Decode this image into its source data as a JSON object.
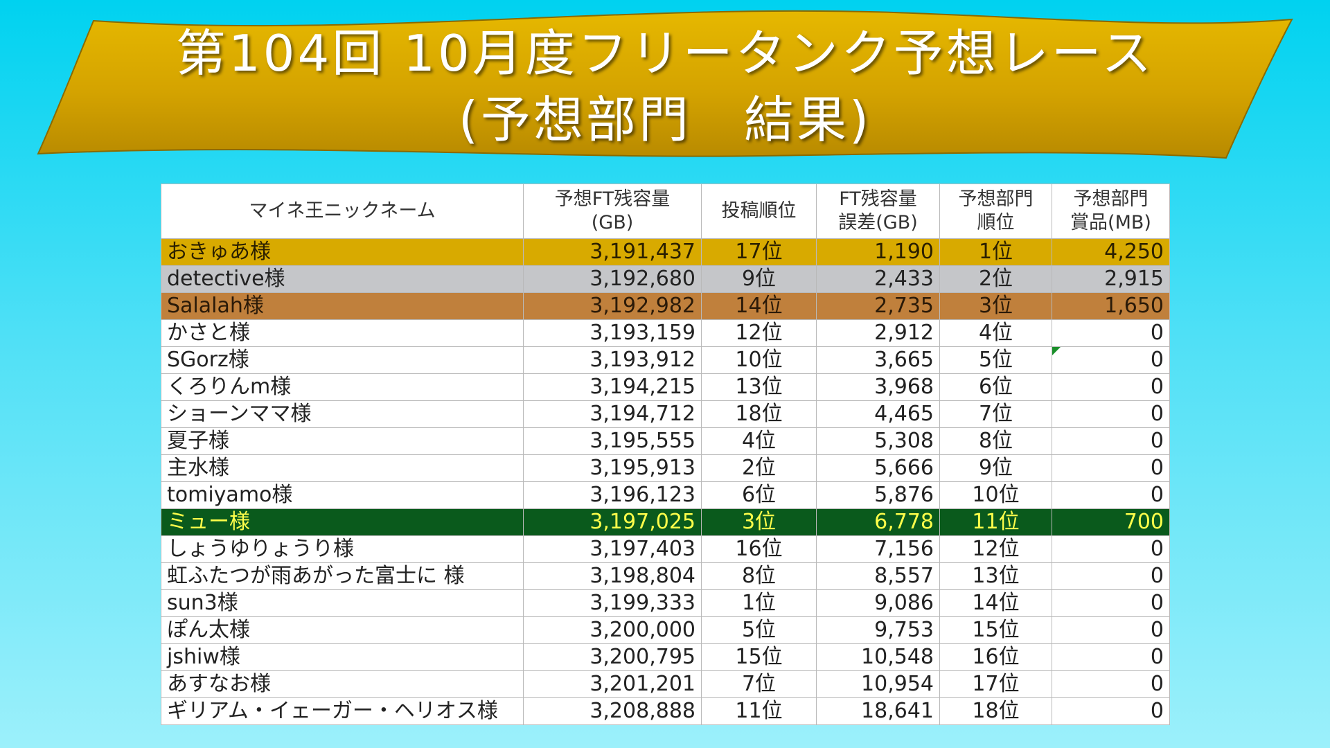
{
  "title": {
    "line1": "第104回 10月度フリータンク予想レース",
    "line2": "(予想部門　結果)"
  },
  "colors": {
    "banner_gold": "#d8a800",
    "gold": "#d8aa00",
    "silver": "#c5c6c9",
    "bronze": "#c0803c",
    "green": "#0a5a1c",
    "green_text": "#ffff4a"
  },
  "table": {
    "headers": {
      "name": "マイネ王ニックネーム",
      "forecast_l1": "予想FT残容量",
      "forecast_l2": "(GB)",
      "post_rank": "投稿順位",
      "error_l1": "FT残容量",
      "error_l2": "誤差(GB)",
      "rank_l1": "予想部門",
      "rank_l2": "順位",
      "prize_l1": "予想部門",
      "prize_l2": "賞品(MB)"
    },
    "rows": [
      {
        "name": "おきゅあ様",
        "forecast": "3,191,437",
        "post": "17位",
        "error": "1,190",
        "rank": "1位",
        "prize": "4,250",
        "style": "gold"
      },
      {
        "name": "detective様",
        "forecast": "3,192,680",
        "post": "9位",
        "error": "2,433",
        "rank": "2位",
        "prize": "2,915",
        "style": "silver"
      },
      {
        "name": "Salalah様",
        "forecast": "3,192,982",
        "post": "14位",
        "error": "2,735",
        "rank": "3位",
        "prize": "1,650",
        "style": "bronze"
      },
      {
        "name": "かさと様",
        "forecast": "3,193,159",
        "post": "12位",
        "error": "2,912",
        "rank": "4位",
        "prize": "0",
        "style": ""
      },
      {
        "name": "SGorz様",
        "forecast": "3,193,912",
        "post": "10位",
        "error": "3,665",
        "rank": "5位",
        "prize": "0",
        "style": ""
      },
      {
        "name": "くろりんm様",
        "forecast": "3,194,215",
        "post": "13位",
        "error": "3,968",
        "rank": "6位",
        "prize": "0",
        "style": ""
      },
      {
        "name": "ショーンママ様",
        "forecast": "3,194,712",
        "post": "18位",
        "error": "4,465",
        "rank": "7位",
        "prize": "0",
        "style": ""
      },
      {
        "name": "夏子様",
        "forecast": "3,195,555",
        "post": "4位",
        "error": "5,308",
        "rank": "8位",
        "prize": "0",
        "style": ""
      },
      {
        "name": "主水様",
        "forecast": "3,195,913",
        "post": "2位",
        "error": "5,666",
        "rank": "9位",
        "prize": "0",
        "style": ""
      },
      {
        "name": "tomiyamo様",
        "forecast": "3,196,123",
        "post": "6位",
        "error": "5,876",
        "rank": "10位",
        "prize": "0",
        "style": ""
      },
      {
        "name": "ミュー様",
        "forecast": "3,197,025",
        "post": "3位",
        "error": "6,778",
        "rank": "11位",
        "prize": "700",
        "style": "green"
      },
      {
        "name": "しょうゆりょうり様",
        "forecast": "3,197,403",
        "post": "16位",
        "error": "7,156",
        "rank": "12位",
        "prize": "0",
        "style": ""
      },
      {
        "name": "虹ふたつが雨あがった富士に 様",
        "forecast": "3,198,804",
        "post": "8位",
        "error": "8,557",
        "rank": "13位",
        "prize": "0",
        "style": ""
      },
      {
        "name": "sun3様",
        "forecast": "3,199,333",
        "post": "1位",
        "error": "9,086",
        "rank": "14位",
        "prize": "0",
        "style": ""
      },
      {
        "name": "ぽん太様",
        "forecast": "3,200,000",
        "post": "5位",
        "error": "9,753",
        "rank": "15位",
        "prize": "0",
        "style": ""
      },
      {
        "name": "jshiw様",
        "forecast": "3,200,795",
        "post": "15位",
        "error": "10,548",
        "rank": "16位",
        "prize": "0",
        "style": ""
      },
      {
        "name": "あすなお様",
        "forecast": "3,201,201",
        "post": "7位",
        "error": "10,954",
        "rank": "17位",
        "prize": "0",
        "style": ""
      },
      {
        "name": "ギリアム・イェーガー・ヘリオス様",
        "forecast": "3,208,888",
        "post": "11位",
        "error": "18,641",
        "rank": "18位",
        "prize": "0",
        "style": ""
      }
    ]
  }
}
